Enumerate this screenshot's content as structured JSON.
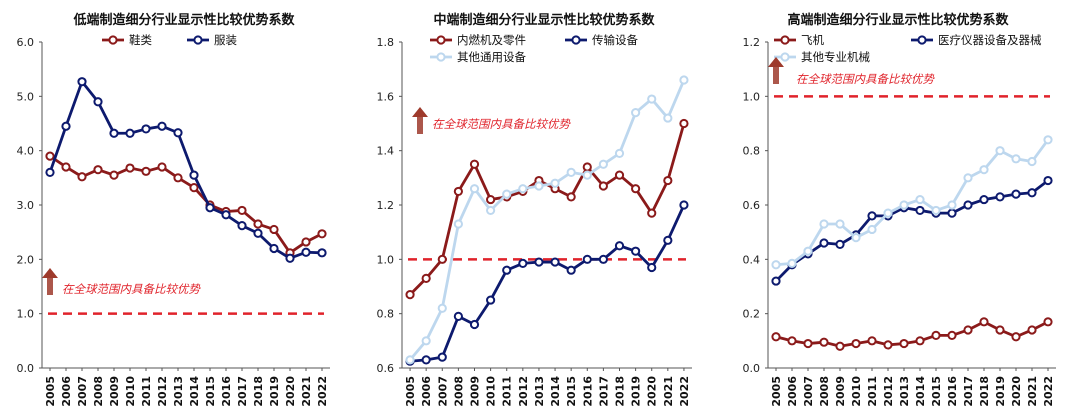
{
  "chart_data": [
    {
      "type": "line",
      "title": "低端制造细分行业显示性比较优势系数",
      "x": [
        "2005",
        "2006",
        "2007",
        "2008",
        "2009",
        "2010",
        "2011",
        "2012",
        "2013",
        "2014",
        "2015",
        "2016",
        "2017",
        "2018",
        "2019",
        "2020",
        "2021",
        "2022"
      ],
      "ylim": [
        0,
        6
      ],
      "yticks": [
        "0.0",
        "1.0",
        "2.0",
        "3.0",
        "4.0",
        "5.0",
        "6.0"
      ],
      "series": [
        {
          "name": "鞋类",
          "color": "#8b1a1a",
          "values": [
            3.9,
            3.7,
            3.52,
            3.65,
            3.55,
            3.68,
            3.62,
            3.7,
            3.5,
            3.32,
            3.0,
            2.88,
            2.9,
            2.65,
            2.55,
            2.12,
            2.32,
            2.47
          ]
        },
        {
          "name": "服装",
          "color": "#0d1a6e",
          "values": [
            3.6,
            4.45,
            5.27,
            4.9,
            4.32,
            4.32,
            4.4,
            4.45,
            4.33,
            3.55,
            2.95,
            2.82,
            2.62,
            2.48,
            2.2,
            2.02,
            2.13,
            2.12
          ]
        }
      ],
      "reference": {
        "value": 1.0,
        "color": "#e0232b",
        "label": "在全球范围内具备比较优势"
      }
    },
    {
      "type": "line",
      "title": "中端制造细分行业显示性比较优势系数",
      "x": [
        "2005",
        "2006",
        "2007",
        "2008",
        "2009",
        "2010",
        "2011",
        "2012",
        "2013",
        "2014",
        "2015",
        "2016",
        "2017",
        "2018",
        "2019",
        "2020",
        "2021",
        "2022"
      ],
      "ylim": [
        0.6,
        1.8
      ],
      "yticks": [
        "0.6",
        "0.8",
        "1.0",
        "1.2",
        "1.4",
        "1.6",
        "1.8"
      ],
      "series": [
        {
          "name": "内燃机及零件",
          "color": "#8b1a1a",
          "values": [
            0.87,
            0.93,
            1.0,
            1.25,
            1.35,
            1.22,
            1.23,
            1.25,
            1.29,
            1.26,
            1.23,
            1.34,
            1.27,
            1.31,
            1.26,
            1.17,
            1.29,
            1.5
          ]
        },
        {
          "name": "传输设备",
          "color": "#0d1a6e",
          "values": [
            0.625,
            0.63,
            0.64,
            0.79,
            0.76,
            0.85,
            0.96,
            0.985,
            0.99,
            0.99,
            0.96,
            1.0,
            1.0,
            1.05,
            1.03,
            0.97,
            1.07,
            1.2
          ]
        },
        {
          "name": "其他通用设备",
          "color": "#bdd7ee",
          "values": [
            0.63,
            0.7,
            0.82,
            1.13,
            1.26,
            1.18,
            1.24,
            1.26,
            1.27,
            1.28,
            1.32,
            1.31,
            1.35,
            1.39,
            1.54,
            1.59,
            1.52,
            1.66
          ]
        }
      ],
      "reference": {
        "value": 1.0,
        "color": "#e0232b",
        "label": "在全球范围内具备比较优势"
      }
    },
    {
      "type": "line",
      "title": "高端制造细分行业显示性比较优势系数",
      "x": [
        "2005",
        "2006",
        "2007",
        "2008",
        "2009",
        "2010",
        "2011",
        "2012",
        "2013",
        "2014",
        "2015",
        "2016",
        "2017",
        "2018",
        "2019",
        "2020",
        "2021",
        "2022"
      ],
      "ylim": [
        0,
        1.2
      ],
      "yticks": [
        "0.0",
        "0.2",
        "0.4",
        "0.6",
        "0.8",
        "1.0",
        "1.2"
      ],
      "series": [
        {
          "name": "飞机",
          "color": "#8b1a1a",
          "values": [
            0.115,
            0.1,
            0.09,
            0.095,
            0.08,
            0.09,
            0.1,
            0.085,
            0.09,
            0.1,
            0.12,
            0.12,
            0.14,
            0.17,
            0.14,
            0.115,
            0.14,
            0.17
          ]
        },
        {
          "name": "医疗仪器设备及器械",
          "color": "#0d1a6e",
          "values": [
            0.32,
            0.38,
            0.42,
            0.46,
            0.455,
            0.49,
            0.56,
            0.56,
            0.59,
            0.58,
            0.57,
            0.57,
            0.6,
            0.62,
            0.63,
            0.64,
            0.645,
            0.69
          ]
        },
        {
          "name": "其他专业机械",
          "color": "#bdd7ee",
          "values": [
            0.38,
            0.385,
            0.43,
            0.53,
            0.53,
            0.48,
            0.51,
            0.57,
            0.6,
            0.62,
            0.58,
            0.6,
            0.7,
            0.73,
            0.8,
            0.77,
            0.76,
            0.84
          ]
        }
      ],
      "reference": {
        "value": 1.0,
        "color": "#e0232b",
        "label": "在全球范围内具备比较优势"
      }
    }
  ]
}
